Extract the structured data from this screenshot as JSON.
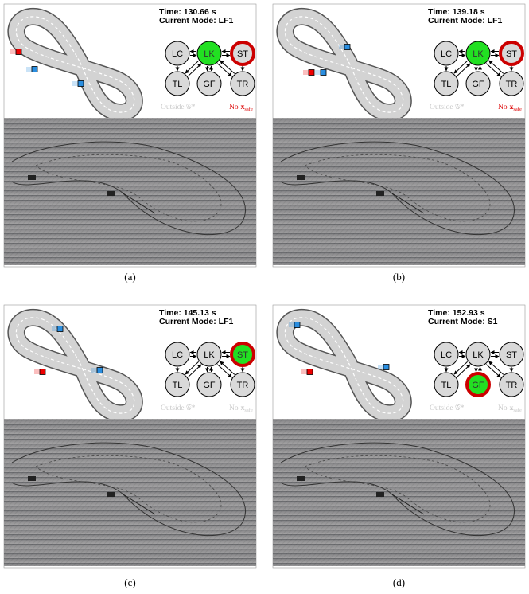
{
  "panels": [
    {
      "time": "Time: 130.66 s",
      "mode": "Current Mode: LF1",
      "nodes": [
        "LC",
        "LK",
        "ST",
        "TL",
        "GF",
        "TR"
      ],
      "outside": "Outside 𝒢*",
      "no_safe": {
        "text": "No",
        "symbol": "x",
        "subscript": "safe"
      },
      "highlight": {
        "fill": "LK",
        "ring": "ST"
      },
      "no_safe_alert": true,
      "caption": "(a)"
    },
    {
      "time": "Time: 139.18 s",
      "mode": "Current Mode: LF1",
      "nodes": [
        "LC",
        "LK",
        "ST",
        "TL",
        "GF",
        "TR"
      ],
      "outside": "Outside 𝒢*",
      "no_safe": {
        "text": "No",
        "symbol": "x",
        "subscript": "safe"
      },
      "highlight": {
        "fill": "LK",
        "ring": "ST"
      },
      "no_safe_alert": true,
      "caption": "(b)"
    },
    {
      "time": "Time: 145.13 s",
      "mode": "Current Mode: LF1",
      "nodes": [
        "LC",
        "LK",
        "ST",
        "TL",
        "GF",
        "TR"
      ],
      "outside": "Outside 𝒢*",
      "no_safe": {
        "text": "No",
        "symbol": "x",
        "subscript": "safe"
      },
      "highlight": {
        "fill": "ST",
        "ring": "ST"
      },
      "no_safe_alert": false,
      "caption": "(c)"
    },
    {
      "time": "Time: 152.93 s",
      "mode": "Current Mode: S1",
      "nodes": [
        "LC",
        "LK",
        "ST",
        "TL",
        "GF",
        "TR"
      ],
      "outside": "Outside 𝒢*",
      "no_safe": {
        "text": "No",
        "symbol": "x",
        "subscript": "safe"
      },
      "highlight": {
        "fill": "GF",
        "ring": "GF"
      },
      "no_safe_alert": false,
      "caption": "(d)"
    }
  ]
}
